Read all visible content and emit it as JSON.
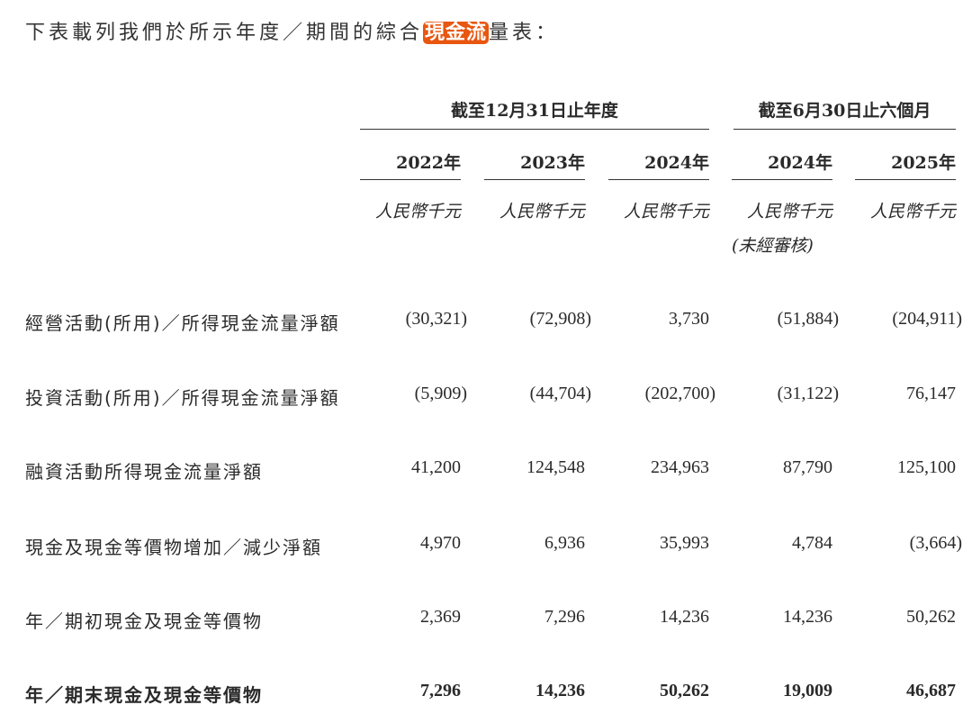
{
  "intro": {
    "before": "下表載列我們於所示年度／期間的綜合",
    "highlight": "現金流",
    "after": "量表："
  },
  "header": {
    "group1": "截至12月31日止年度",
    "group2": "截至6月30日止六個月",
    "years": [
      "2022年",
      "2023年",
      "2024年",
      "2024年",
      "2025年"
    ],
    "unit": "人民幣千元",
    "unaudited": "(未經審核)"
  },
  "rows": [
    {
      "label": "經營活動(所用)／所得現金流量淨額",
      "values": [
        "(30,321)",
        "(72,908)",
        "3,730",
        "(51,884)",
        "(204,911)"
      ]
    },
    {
      "label": "投資活動(所用)／所得現金流量淨額",
      "values": [
        "(5,909)",
        "(44,704)",
        "(202,700)",
        "(31,122)",
        "76,147"
      ]
    },
    {
      "label": "融資活動所得現金流量淨額",
      "values": [
        "41,200",
        "124,548",
        "234,963",
        "87,790",
        "125,100"
      ]
    },
    {
      "label": "現金及現金等價物增加／減少淨額",
      "values": [
        "4,970",
        "6,936",
        "35,993",
        "4,784",
        "(3,664)"
      ]
    },
    {
      "label": "年／期初現金及現金等價物",
      "values": [
        "2,369",
        "7,296",
        "14,236",
        "14,236",
        "50,262"
      ]
    },
    {
      "label": "年／期末現金及現金等價物",
      "values": [
        "7,296",
        "14,236",
        "50,262",
        "19,009",
        "46,687"
      ],
      "bold": true
    }
  ],
  "colors": {
    "highlight": "#e8560f"
  }
}
